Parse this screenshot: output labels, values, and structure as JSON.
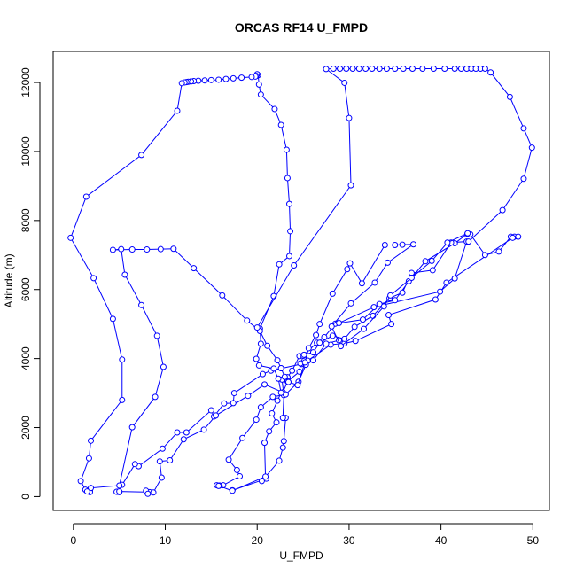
{
  "chart_data": {
    "type": "line",
    "title": "ORCAS RF14 U_FMPD",
    "xlabel": "U_FMPD",
    "ylabel": "Altitude (m)",
    "xlim": [
      -2.2,
      51.8
    ],
    "ylim": [
      -400,
      12900
    ],
    "xticks": [
      0,
      10,
      20,
      30,
      40,
      50
    ],
    "yticks": [
      0,
      2000,
      4000,
      6000,
      8000,
      10000,
      12000
    ],
    "color": "#0000ff",
    "marker": "open-circle",
    "grid": false,
    "legend": "none",
    "series": [
      {
        "points": [
          [
            17.3,
            180
          ],
          [
            17.3,
            180
          ],
          [
            21.0,
            520
          ],
          [
            20.5,
            450
          ],
          [
            22.4,
            1040
          ],
          [
            22.8,
            1420
          ],
          [
            22.9,
            1610
          ],
          [
            23.1,
            2280
          ],
          [
            22.8,
            2280
          ],
          [
            22.9,
            2940
          ],
          [
            22.7,
            3390
          ],
          [
            23.3,
            3460
          ],
          [
            23.8,
            3650
          ],
          [
            24.6,
            4070
          ],
          [
            25.0,
            4080
          ],
          [
            26.5,
            4460
          ],
          [
            27.3,
            4620
          ],
          [
            28.5,
            5010
          ],
          [
            31.5,
            5130
          ],
          [
            33.3,
            5580
          ],
          [
            35.0,
            5690
          ],
          [
            36.5,
            6240
          ],
          [
            38.3,
            6820
          ],
          [
            41.5,
            7340
          ],
          [
            42.9,
            7620
          ],
          [
            42.9,
            7610
          ],
          [
            43.2,
            7600
          ],
          [
            44.8,
            7000
          ],
          [
            46.3,
            7100
          ],
          [
            47.6,
            7530
          ],
          [
            48.0,
            7530
          ],
          [
            48.4,
            7530
          ],
          [
            47.8,
            7500
          ],
          [
            40.6,
            6200
          ],
          [
            39.4,
            5710
          ],
          [
            34.3,
            5260
          ],
          [
            34.6,
            5000
          ],
          [
            30.7,
            4510
          ],
          [
            29.5,
            4440
          ],
          [
            28.0,
            4400
          ],
          [
            25.5,
            3940
          ],
          [
            24.8,
            3840
          ],
          [
            21.5,
            3650
          ],
          [
            20.6,
            3550
          ],
          [
            17.5,
            3000
          ],
          [
            17.4,
            2710
          ],
          [
            16.4,
            2700
          ],
          [
            15.3,
            2320
          ],
          [
            15.0,
            2500
          ],
          [
            12.3,
            1860
          ],
          [
            11.3,
            1860
          ],
          [
            9.7,
            1390
          ],
          [
            7.1,
            880
          ],
          [
            6.7,
            940
          ],
          [
            5.3,
            340
          ],
          [
            4.8,
            140
          ],
          [
            5.0,
            130
          ],
          [
            4.7,
            140
          ],
          [
            5.0,
            150
          ],
          [
            8.3,
            130
          ],
          [
            7.9,
            170
          ],
          [
            8.1,
            80
          ],
          [
            8.7,
            120
          ],
          [
            9.6,
            550
          ],
          [
            9.4,
            1020
          ],
          [
            10.5,
            1050
          ],
          [
            12.0,
            1660
          ],
          [
            14.2,
            1940
          ],
          [
            15.5,
            2350
          ],
          [
            19.0,
            2920
          ],
          [
            20.8,
            3250
          ],
          [
            22.8,
            3020
          ],
          [
            23.3,
            3340
          ],
          [
            24.6,
            3620
          ],
          [
            24.7,
            3860
          ],
          [
            25.1,
            4110
          ],
          [
            26.1,
            4180
          ],
          [
            26.8,
            4460
          ],
          [
            28.2,
            4660
          ],
          [
            29.5,
            4570
          ],
          [
            30.6,
            4920
          ],
          [
            32.6,
            5240
          ],
          [
            34.4,
            5750
          ],
          [
            35.8,
            5910
          ],
          [
            36.8,
            6480
          ],
          [
            39.1,
            6560
          ],
          [
            41.1,
            7360
          ],
          [
            42.8,
            7390
          ],
          [
            41.5,
            6320
          ],
          [
            39.9,
            5940
          ],
          [
            32.7,
            5490
          ],
          [
            28.9,
            5030
          ],
          [
            28.9,
            4530
          ],
          [
            27.5,
            4430
          ],
          [
            26.1,
            3950
          ],
          [
            25.3,
            3820
          ],
          [
            24.5,
            3330
          ],
          [
            23.1,
            2960
          ],
          [
            21.7,
            2890
          ],
          [
            20.4,
            2590
          ],
          [
            19.9,
            2230
          ],
          [
            18.4,
            1700
          ],
          [
            16.9,
            1070
          ],
          [
            17.8,
            770
          ],
          [
            18.1,
            590
          ],
          [
            16.3,
            330
          ],
          [
            15.6,
            330
          ],
          [
            15.9,
            320
          ]
        ]
      },
      {
        "points": [
          [
            15.9,
            320
          ],
          [
            15.8,
            310
          ],
          [
            17.3,
            170
          ],
          [
            20.9,
            580
          ],
          [
            20.8,
            1560
          ],
          [
            21.3,
            1890
          ],
          [
            22.1,
            2150
          ],
          [
            21.6,
            2410
          ],
          [
            22.2,
            2780
          ],
          [
            22.6,
            3010
          ],
          [
            22.3,
            3420
          ],
          [
            21.8,
            3710
          ],
          [
            20.2,
            3800
          ],
          [
            19.9,
            3990
          ],
          [
            20.4,
            4430
          ],
          [
            20.3,
            4870
          ],
          [
            21.8,
            5810
          ],
          [
            22.4,
            6730
          ],
          [
            23.5,
            6970
          ],
          [
            23.6,
            7690
          ],
          [
            23.5,
            8480
          ],
          [
            23.3,
            9230
          ],
          [
            23.2,
            10050
          ],
          [
            22.6,
            10770
          ],
          [
            21.9,
            11230
          ],
          [
            20.4,
            11650
          ],
          [
            20.2,
            11940
          ],
          [
            20.1,
            12210
          ],
          [
            20.0,
            12240
          ],
          [
            19.9,
            12190
          ],
          [
            19.8,
            12170
          ],
          [
            19.4,
            12160
          ],
          [
            18.3,
            12140
          ],
          [
            17.4,
            12120
          ],
          [
            16.6,
            12100
          ],
          [
            15.8,
            12080
          ],
          [
            15.0,
            12070
          ],
          [
            14.3,
            12060
          ],
          [
            13.6,
            12050
          ],
          [
            13.1,
            12040
          ],
          [
            12.8,
            12030
          ],
          [
            12.5,
            12020
          ],
          [
            12.3,
            12010
          ],
          [
            12.1,
            12000
          ],
          [
            11.8,
            11980
          ],
          [
            11.3,
            11180
          ],
          [
            7.4,
            9900
          ],
          [
            1.4,
            8690
          ],
          [
            -0.3,
            7500
          ],
          [
            2.2,
            6330
          ],
          [
            4.3,
            5150
          ],
          [
            5.3,
            3970
          ],
          [
            5.3,
            2800
          ],
          [
            1.9,
            1620
          ],
          [
            1.7,
            1110
          ],
          [
            0.8,
            450
          ],
          [
            1.3,
            200
          ],
          [
            1.8,
            170
          ],
          [
            1.8,
            130
          ],
          [
            1.5,
            150
          ],
          [
            1.9,
            250
          ],
          [
            5.0,
            320
          ],
          [
            6.4,
            2010
          ],
          [
            8.9,
            2890
          ],
          [
            9.8,
            3760
          ],
          [
            9.1,
            4660
          ],
          [
            7.4,
            5550
          ],
          [
            5.6,
            6430
          ],
          [
            5.2,
            7170
          ],
          [
            4.3,
            7150
          ],
          [
            6.4,
            7160
          ],
          [
            8.0,
            7160
          ],
          [
            9.5,
            7170
          ],
          [
            10.9,
            7180
          ],
          [
            13.1,
            6620
          ],
          [
            16.2,
            5830
          ],
          [
            18.9,
            5100
          ],
          [
            20.3,
            4800
          ],
          [
            21.1,
            4370
          ],
          [
            22.2,
            3950
          ],
          [
            22.6,
            3720
          ]
        ]
      },
      {
        "points": [
          [
            22.6,
            3720
          ],
          [
            23.0,
            3470
          ],
          [
            23.4,
            3320
          ],
          [
            24.4,
            3230
          ],
          [
            25.2,
            3890
          ],
          [
            25.6,
            4300
          ],
          [
            26.4,
            4680
          ],
          [
            26.8,
            5000
          ],
          [
            28.2,
            5880
          ],
          [
            29.8,
            6590
          ],
          [
            30.1,
            6760
          ],
          [
            31.4,
            6180
          ],
          [
            33.9,
            7290
          ],
          [
            35.0,
            7290
          ],
          [
            35.8,
            7300
          ],
          [
            37.0,
            7310
          ],
          [
            34.2,
            6780
          ],
          [
            32.8,
            6200
          ],
          [
            30.2,
            5600
          ],
          [
            28.1,
            4930
          ],
          [
            29.1,
            4360
          ],
          [
            31.6,
            4860
          ],
          [
            33.8,
            5510
          ],
          [
            34.5,
            5830
          ],
          [
            36.8,
            6340
          ],
          [
            39.0,
            6830
          ],
          [
            40.7,
            7360
          ],
          [
            42.9,
            7630
          ]
        ]
      },
      {
        "points": [
          [
            20.0,
            4900
          ],
          [
            24.0,
            6700
          ],
          [
            30.2,
            9020
          ],
          [
            30.0,
            10970
          ],
          [
            29.5,
            11990
          ],
          [
            27.5,
            12390
          ],
          [
            28.3,
            12400
          ],
          [
            29.0,
            12400
          ],
          [
            29.7,
            12400
          ],
          [
            30.4,
            12400
          ],
          [
            31.1,
            12400
          ],
          [
            31.8,
            12400
          ],
          [
            32.5,
            12400
          ],
          [
            33.3,
            12400
          ],
          [
            34.1,
            12400
          ],
          [
            35.0,
            12400
          ],
          [
            35.9,
            12400
          ],
          [
            36.9,
            12400
          ],
          [
            38.0,
            12400
          ],
          [
            39.2,
            12400
          ],
          [
            40.4,
            12400
          ],
          [
            41.5,
            12400
          ],
          [
            42.2,
            12400
          ],
          [
            42.8,
            12400
          ],
          [
            43.3,
            12400
          ],
          [
            43.8,
            12400
          ],
          [
            44.3,
            12400
          ],
          [
            44.8,
            12400
          ],
          [
            45.4,
            12290
          ],
          [
            47.5,
            11580
          ],
          [
            49.0,
            10670
          ],
          [
            49.9,
            10110
          ],
          [
            49.0,
            9210
          ],
          [
            46.7,
            8300
          ],
          [
            43.0,
            7390
          ]
        ]
      }
    ]
  }
}
